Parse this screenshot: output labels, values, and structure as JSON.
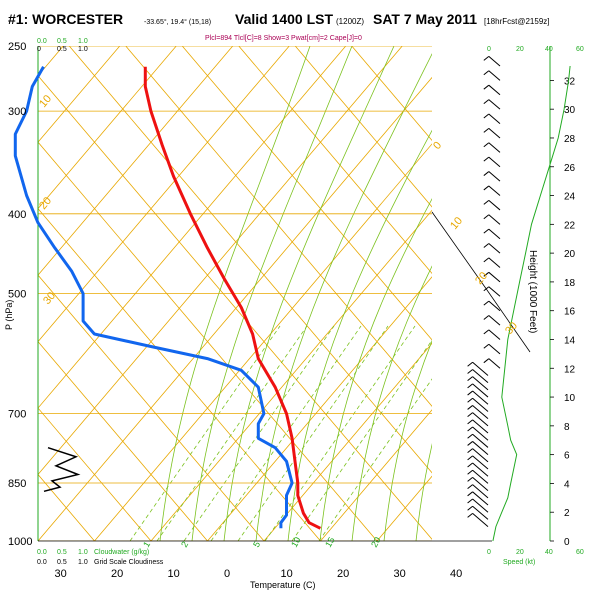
{
  "title": {
    "station": "#1: WORCESTER",
    "coords": "-33.65°, 19.4° (15,18)",
    "valid": "Valid 1400 LST",
    "utc": "(1200Z)",
    "date": "SAT 7 May 2011",
    "fcst": "[18hrFcst@2159z]",
    "indices": "Plcl=894 Tlcl[C]=8 Show=3 Pwat[cm]=2 Cape[J]=0"
  },
  "top_legend": {
    "cloud_ticks": [
      "0.0",
      "0.5",
      "1.0"
    ],
    "cloud_ticks2": [
      "0",
      "0.5",
      "1.0"
    ]
  },
  "bottom_legend": {
    "cloud_ticks": [
      "0.0",
      "0.5",
      "1.0"
    ],
    "cloud_label": "Cloudwater (g/kg)",
    "grid_ticks": [
      "0.0",
      "0.5",
      "1.0"
    ],
    "grid_label": "Grid Scale Cloudiness"
  },
  "speed_axis": {
    "ticks": [
      "0",
      "20",
      "40",
      "60"
    ],
    "label": "Speed (kt)"
  },
  "chart_data": {
    "type": "line",
    "title": "#1: WORCESTER Valid 1400 LST SAT 7 May 2011",
    "xlabel": "Temperature (C)",
    "ylabel": "P (hPa)",
    "y2label": "Height (1000 Feet)",
    "x_ticks": [
      -30,
      -20,
      -10,
      0,
      10,
      20,
      30,
      40
    ],
    "x_tick_labels": [
      "30",
      "20",
      "10",
      "0",
      "10",
      "20",
      "30",
      "40"
    ],
    "p_ticks": [
      250,
      300,
      400,
      500,
      700,
      850,
      1000
    ],
    "height_ticks": [
      0,
      2,
      4,
      6,
      8,
      10,
      12,
      14,
      16,
      18,
      20,
      22,
      24,
      26,
      28,
      30,
      32
    ],
    "isotherm_labels": [
      "0",
      "10",
      "20",
      "30",
      "10",
      "20",
      "30"
    ],
    "mixing_labels": [
      "1",
      "2",
      "5",
      "10",
      "15",
      "20"
    ],
    "skew_degC_per_level": 0,
    "series": [
      {
        "name": "Temperature",
        "color": "#ee1111",
        "points": [
          {
            "p": 965,
            "t": 16
          },
          {
            "p": 950,
            "t": 14
          },
          {
            "p": 925,
            "t": 13
          },
          {
            "p": 880,
            "t": 12
          },
          {
            "p": 850,
            "t": 12
          },
          {
            "p": 800,
            "t": 11.5
          },
          {
            "p": 750,
            "t": 11
          },
          {
            "p": 700,
            "t": 10
          },
          {
            "p": 650,
            "t": 8
          },
          {
            "p": 600,
            "t": 5
          },
          {
            "p": 560,
            "t": 4
          },
          {
            "p": 520,
            "t": 2
          },
          {
            "p": 480,
            "t": -1
          },
          {
            "p": 440,
            "t": -4
          },
          {
            "p": 400,
            "t": -7
          },
          {
            "p": 360,
            "t": -10
          },
          {
            "p": 330,
            "t": -12
          },
          {
            "p": 300,
            "t": -14
          },
          {
            "p": 280,
            "t": -15
          },
          {
            "p": 265,
            "t": -15
          }
        ]
      },
      {
        "name": "Dewpoint",
        "color": "#1166ee",
        "points": [
          {
            "p": 965,
            "t": 9
          },
          {
            "p": 950,
            "t": 9
          },
          {
            "p": 930,
            "t": 10
          },
          {
            "p": 880,
            "t": 10
          },
          {
            "p": 850,
            "t": 11
          },
          {
            "p": 800,
            "t": 10
          },
          {
            "p": 770,
            "t": 8
          },
          {
            "p": 750,
            "t": 5
          },
          {
            "p": 720,
            "t": 5
          },
          {
            "p": 700,
            "t": 6
          },
          {
            "p": 650,
            "t": 5
          },
          {
            "p": 620,
            "t": 2
          },
          {
            "p": 600,
            "t": -4
          },
          {
            "p": 580,
            "t": -14
          },
          {
            "p": 560,
            "t": -24
          },
          {
            "p": 540,
            "t": -26
          },
          {
            "p": 500,
            "t": -26
          },
          {
            "p": 470,
            "t": -28
          },
          {
            "p": 440,
            "t": -31
          },
          {
            "p": 410,
            "t": -34
          },
          {
            "p": 380,
            "t": -36
          },
          {
            "p": 340,
            "t": -38
          },
          {
            "p": 320,
            "t": -38
          },
          {
            "p": 300,
            "t": -36
          },
          {
            "p": 280,
            "t": -35
          },
          {
            "p": 265,
            "t": -33
          }
        ]
      }
    ],
    "wind_speed_profile": [
      {
        "h": 0,
        "kt": 4
      },
      {
        "h": 1,
        "kt": 6
      },
      {
        "h": 2,
        "kt": 10
      },
      {
        "h": 3,
        "kt": 14
      },
      {
        "h": 4,
        "kt": 16
      },
      {
        "h": 5,
        "kt": 18
      },
      {
        "h": 6,
        "kt": 20
      },
      {
        "h": 7,
        "kt": 16
      },
      {
        "h": 8,
        "kt": 14
      },
      {
        "h": 10,
        "kt": 10
      },
      {
        "h": 12,
        "kt": 12
      },
      {
        "h": 14,
        "kt": 14
      },
      {
        "h": 16,
        "kt": 18
      },
      {
        "h": 18,
        "kt": 22
      },
      {
        "h": 20,
        "kt": 26
      },
      {
        "h": 22,
        "kt": 30
      },
      {
        "h": 24,
        "kt": 36
      },
      {
        "h": 26,
        "kt": 42
      },
      {
        "h": 28,
        "kt": 48
      },
      {
        "h": 30,
        "kt": 52
      },
      {
        "h": 32,
        "kt": 55
      },
      {
        "h": 33,
        "kt": 56
      }
    ],
    "wind_barb_heights": [
      33,
      32,
      31,
      30,
      29,
      28,
      27,
      26,
      25,
      24,
      23,
      22,
      21,
      20,
      19,
      18,
      17,
      16,
      15,
      14,
      13,
      12,
      11.5,
      11,
      10.5,
      10,
      9.5,
      9,
      8.5,
      8,
      7.5,
      7,
      6.5,
      6,
      5.5,
      5,
      4.5,
      4,
      3.5,
      3,
      2.5,
      2,
      1.5,
      1
    ],
    "cloud_profile": [
      {
        "p": 770,
        "v": 0.2
      },
      {
        "p": 790,
        "v": 0.9
      },
      {
        "p": 810,
        "v": 0.4
      },
      {
        "p": 830,
        "v": 0.95
      },
      {
        "p": 845,
        "v": 0.3
      },
      {
        "p": 860,
        "v": 0.5
      },
      {
        "p": 870,
        "v": 0.1
      }
    ]
  }
}
